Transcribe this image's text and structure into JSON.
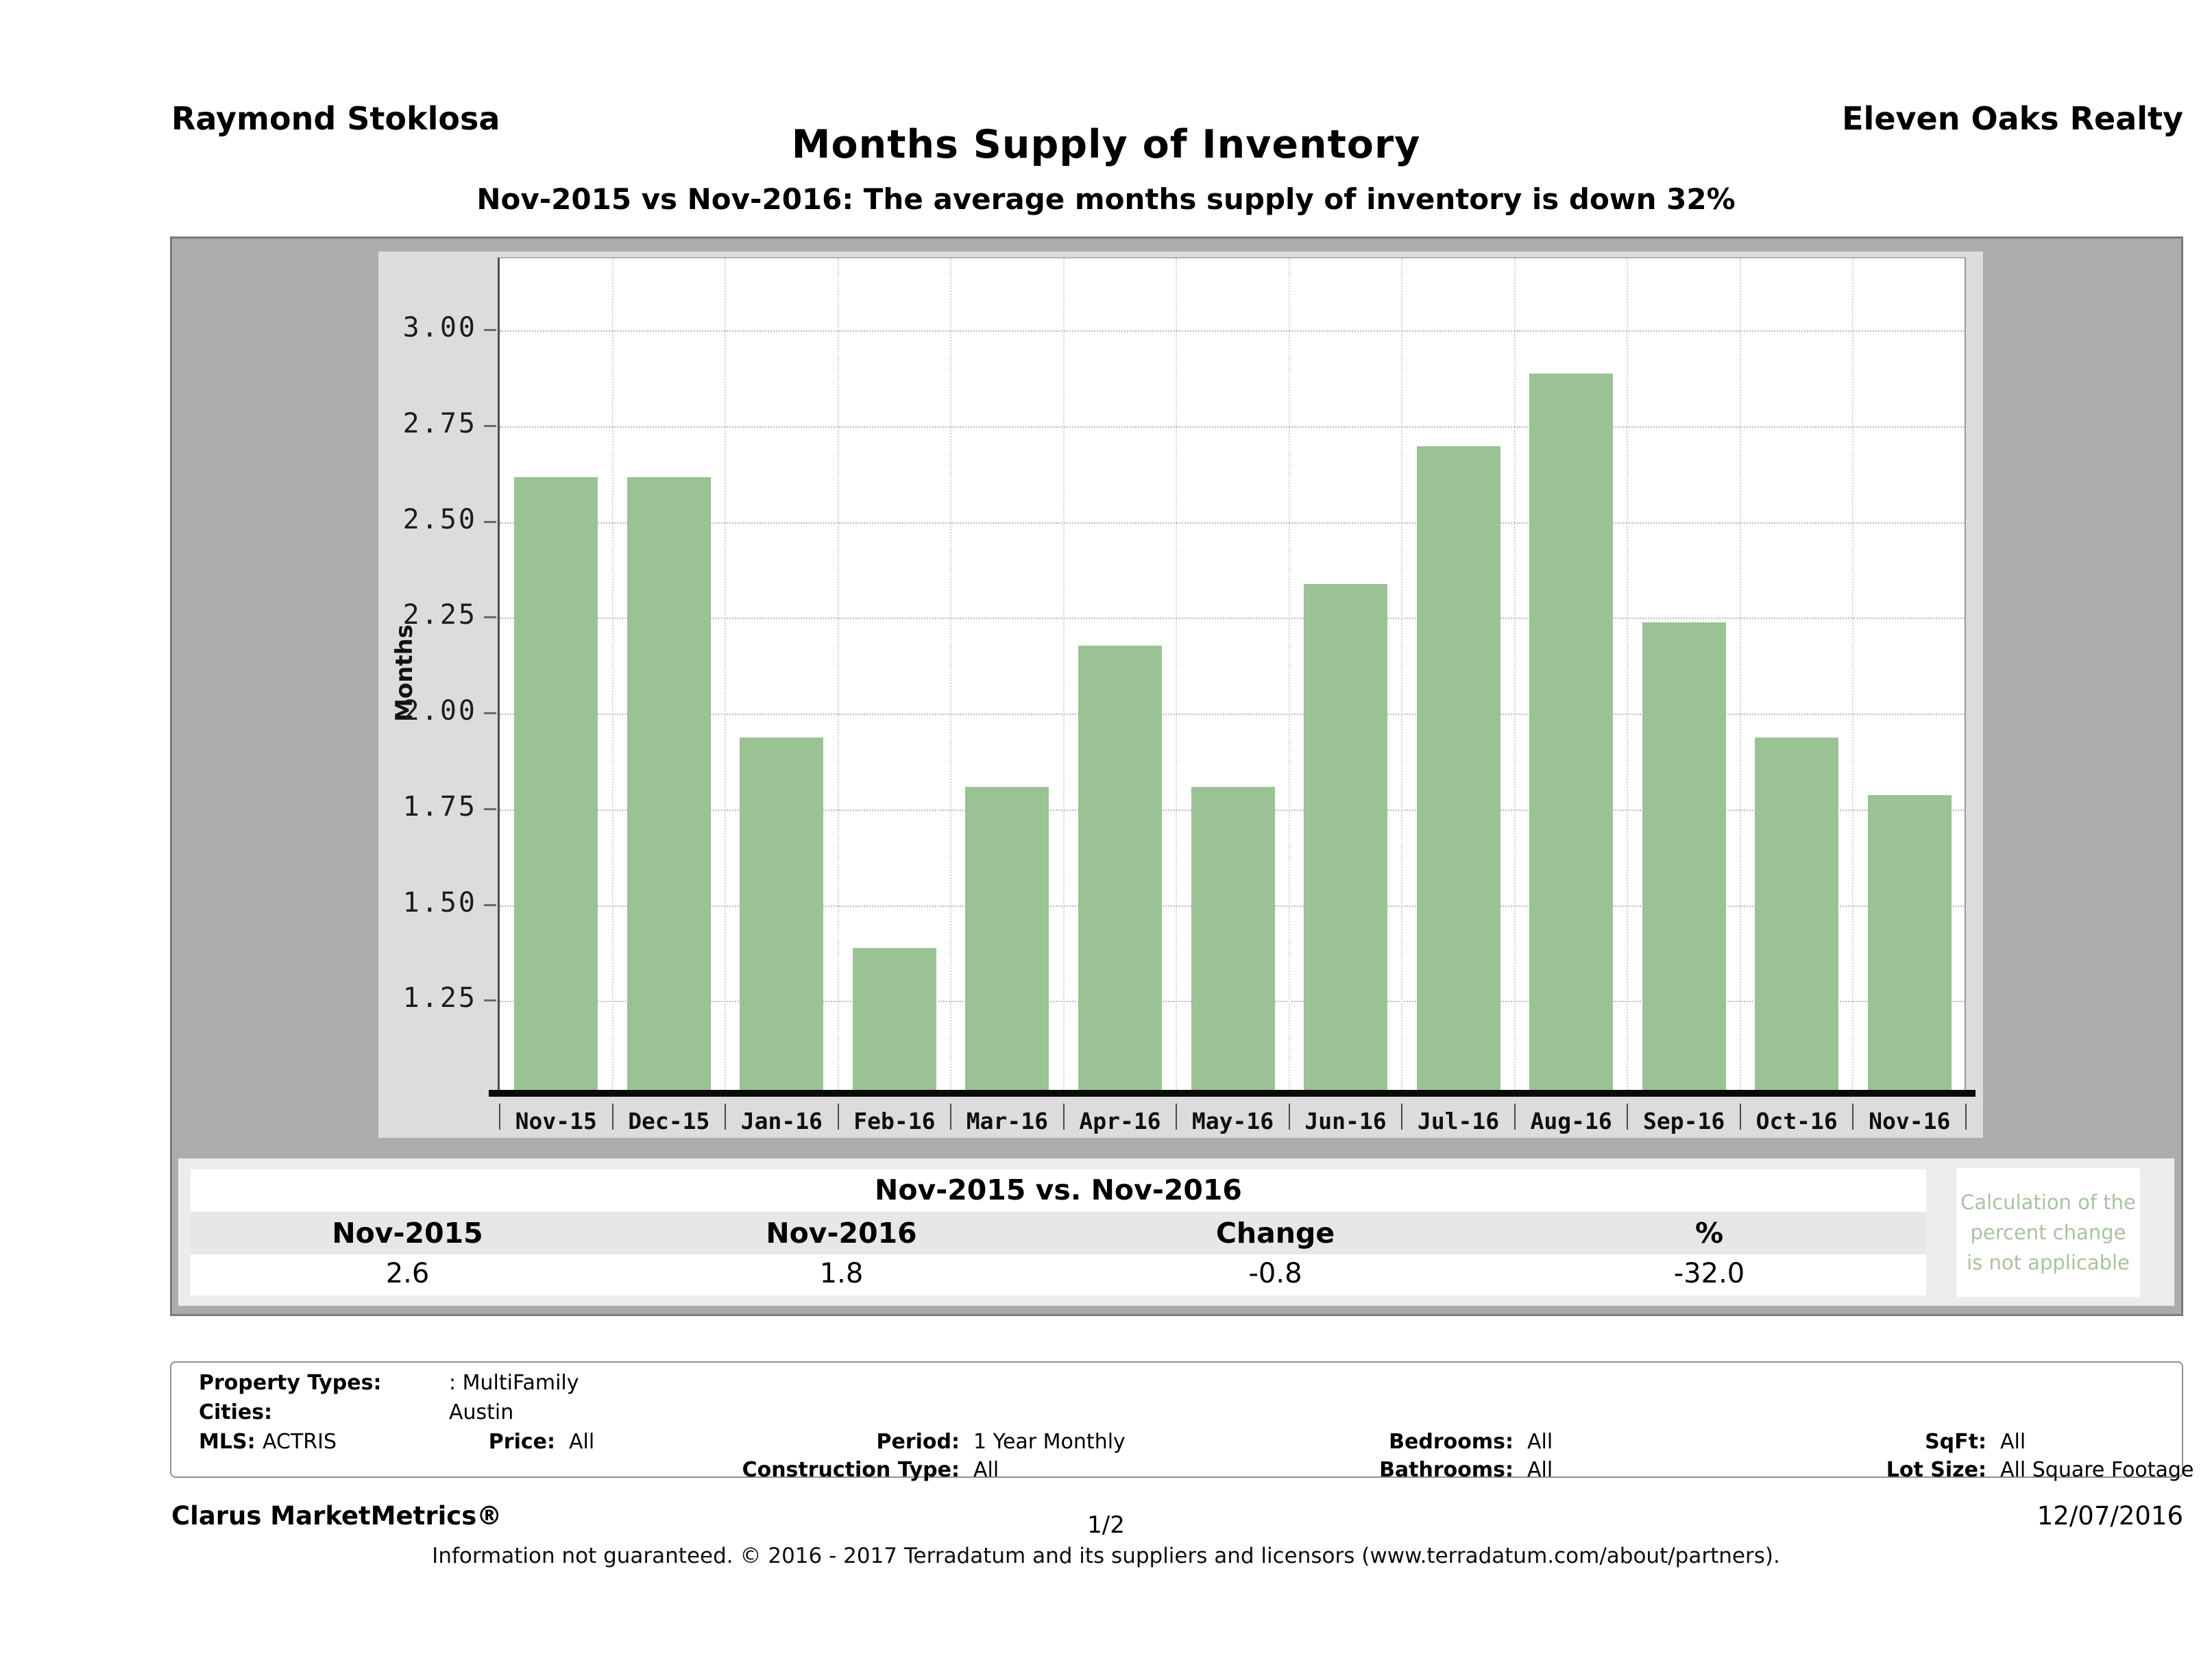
{
  "header": {
    "agent_name": "Raymond Stoklosa",
    "company_name": "Eleven Oaks Realty",
    "report_title": "Months Supply of Inventory",
    "report_subtitle": "Nov-2015 vs Nov-2016: The average months supply of inventory is down 32%"
  },
  "chart_data": {
    "type": "bar",
    "title": "Months Supply of Inventory",
    "xlabel": "",
    "ylabel": "Months",
    "categories": [
      "Nov-15",
      "Dec-15",
      "Jan-16",
      "Feb-16",
      "Mar-16",
      "Apr-16",
      "May-16",
      "Jun-16",
      "Jul-16",
      "Aug-16",
      "Sep-16",
      "Oct-16",
      "Nov-16"
    ],
    "values": [
      2.62,
      2.62,
      1.94,
      1.39,
      1.81,
      2.18,
      1.81,
      2.34,
      2.7,
      2.89,
      2.24,
      1.94,
      1.79
    ],
    "ytick_labels": [
      "3.00",
      "2.75",
      "2.50",
      "2.25",
      "2.00",
      "1.75",
      "1.50",
      "1.25"
    ],
    "ytick_values": [
      3.0,
      2.75,
      2.5,
      2.25,
      2.0,
      1.75,
      1.5,
      1.25
    ],
    "ylim": [
      1.02,
      3.19
    ],
    "grid": true,
    "legend_position": "none",
    "bar_color": "#9ac295"
  },
  "comparison": {
    "title": "Nov-2015 vs. Nov-2016",
    "columns": [
      "Nov-2015",
      "Nov-2016",
      "Change",
      "%"
    ],
    "values": [
      "2.6",
      "1.8",
      "-0.8",
      "-32.0"
    ],
    "note_lines": [
      "Calculation of the",
      "percent change",
      "is not applicable"
    ],
    "note_color": "#a9c2a2"
  },
  "criteria": {
    "row1": {
      "label": "Property Types:",
      "value": ": MultiFamily"
    },
    "row2": {
      "label": "Cities:",
      "value": "Austin"
    },
    "row3": [
      {
        "label": "MLS:",
        "value": "ACTRIS"
      },
      {
        "label": "Price:",
        "value": "All"
      },
      {
        "label": "Period:",
        "value": "1 Year Monthly"
      },
      {
        "label": "Bedrooms:",
        "value": "All"
      },
      {
        "label": "SqFt:",
        "value": "All"
      }
    ],
    "row4": [
      {
        "label": "Construction Type:",
        "value": "All"
      },
      {
        "label": "Bathrooms:",
        "value": "All"
      },
      {
        "label": "Lot Size:",
        "value": "All Square Footage"
      }
    ]
  },
  "footer": {
    "brand": "Clarus MarketMetrics®",
    "page_number": "1/2",
    "date": "12/07/2016",
    "disclaimer": "Information not guaranteed. © 2016 - 2017 Terradatum and its suppliers and licensors (www.terradatum.com/about/partners)."
  }
}
